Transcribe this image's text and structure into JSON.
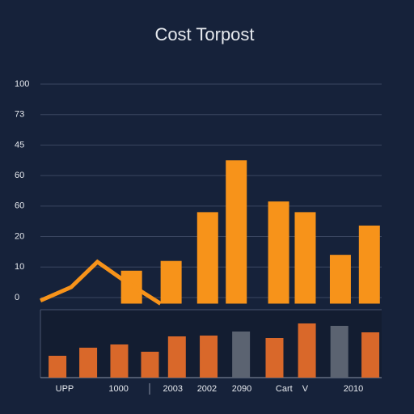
{
  "chart_data": [
    {
      "type": "bar",
      "title": "Cost Torpost",
      "xlim": [
        0,
        100
      ],
      "ylim": [
        -2,
        70
      ],
      "grid": true,
      "yticks": [
        0,
        10,
        20,
        {
          "value": 30,
          "label": "60"
        },
        {
          "value": 40,
          "label": "60"
        },
        {
          "value": 50,
          "label": "45"
        },
        {
          "value": 60,
          "label": "73"
        },
        {
          "value": 70,
          "label": "100"
        }
      ],
      "series": [
        {
          "type": "bar",
          "color": "#f7931a",
          "x": [
            26.7,
            38.3,
            49,
            57.4,
            69.8,
            77.6,
            87.9,
            96.4
          ],
          "values": [
            8.8,
            12,
            28,
            45,
            31.5,
            28,
            14,
            23.6
          ]
        },
        {
          "type": "line",
          "color": "#f7931a",
          "x": [
            0,
            9,
            16.7,
            23.8,
            35.2
          ],
          "values": [
            -1,
            3.4,
            11.7,
            6.1,
            -2
          ]
        }
      ]
    },
    {
      "type": "bar",
      "xlim": [
        0,
        100
      ],
      "ylim": [
        0,
        84
      ],
      "xticks": [
        {
          "value": 7.1,
          "label": "UPP"
        },
        22.9,
        38.8,
        48.8,
        59,
        {
          "value": 71.4,
          "label": "Cart"
        },
        {
          "value": 77.6,
          "label": "V"
        },
        91.7
      ],
      "xtick_labels_shown": [
        "UPP",
        "1000",
        "2003",
        "2002",
        "2090",
        "Cart",
        "V",
        "2010"
      ],
      "series": [
        {
          "type": "bar",
          "x": [
            5,
            14,
            23.1,
            32.1,
            40,
            49.3,
            58.8,
            68.6,
            78.1,
            87.6,
            96.7
          ],
          "values": [
            27,
            37,
            41,
            32,
            51,
            52,
            57,
            49,
            67,
            64,
            56
          ],
          "colors": [
            "#d9682a",
            "#d9682a",
            "#d9682a",
            "#d9682a",
            "#d9682a",
            "#d9682a",
            "#5b6371",
            "#d9682a",
            "#d9682a",
            "#5b6371",
            "#d9682a"
          ]
        }
      ]
    }
  ]
}
